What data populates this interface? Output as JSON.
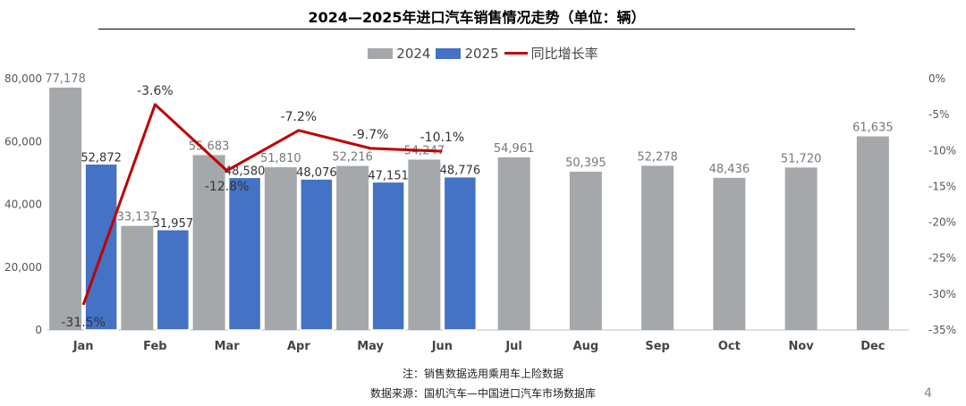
{
  "title": "2024—2025年进口汽车销售情况走势（单位：辆）",
  "legend": [
    {
      "label": "2024",
      "kind": "bar",
      "color": "#A5A8AB"
    },
    {
      "label": "2025",
      "kind": "bar",
      "color": "#4472C4"
    },
    {
      "label": "同比增长率",
      "kind": "line",
      "color": "#C00000"
    }
  ],
  "chart_data": {
    "type": "bar",
    "categories": [
      "Jan",
      "Feb",
      "Mar",
      "Apr",
      "May",
      "Jun",
      "Jul",
      "Aug",
      "Sep",
      "Oct",
      "Nov",
      "Dec"
    ],
    "series": [
      {
        "name": "2024",
        "type": "bar",
        "axis": "left",
        "color": "#A5A8AB",
        "values": [
          77178,
          33137,
          55683,
          51810,
          52216,
          54247,
          54961,
          50395,
          52278,
          48436,
          51720,
          61635
        ],
        "labels": [
          "77,178",
          "33,137",
          "55,683",
          "51,810",
          "52,216",
          "54,247",
          "54,961",
          "50,395",
          "52,278",
          "48,436",
          "51,720",
          "61,635"
        ]
      },
      {
        "name": "2025",
        "type": "bar",
        "axis": "left",
        "color": "#4472C4",
        "values": [
          52872,
          31957,
          48580,
          48076,
          47151,
          48776,
          null,
          null,
          null,
          null,
          null,
          null
        ],
        "labels": [
          "52,872",
          "31,957",
          "48,580",
          "48,076",
          "47,151",
          "48,776",
          null,
          null,
          null,
          null,
          null,
          null
        ]
      },
      {
        "name": "同比增长率",
        "type": "line",
        "axis": "right",
        "color": "#C00000",
        "values": [
          -31.5,
          -3.6,
          -12.8,
          -7.2,
          -9.7,
          -10.1,
          null,
          null,
          null,
          null,
          null,
          null
        ],
        "labels": [
          "-31.5%",
          "-3.6%",
          "-12.8%",
          "-7.2%",
          "-9.7%",
          "-10.1%",
          null,
          null,
          null,
          null,
          null,
          null
        ]
      }
    ],
    "y_left": {
      "min": 0,
      "max": 80000,
      "ticks": [
        "0",
        "20,000",
        "40,000",
        "60,000",
        "80,000"
      ]
    },
    "y_right": {
      "min": -35,
      "max": 0,
      "ticks": [
        "-35%",
        "-30%",
        "-25%",
        "-20%",
        "-15%",
        "-10%",
        "-5%",
        "0%"
      ]
    },
    "grid": false,
    "legend_position": "top-center"
  },
  "notes": {
    "line1": "注：销售数据选用乘用车上险数据",
    "line2": "数据来源：国机汽车—中国进口汽车市场数据库"
  },
  "page_number": "4"
}
